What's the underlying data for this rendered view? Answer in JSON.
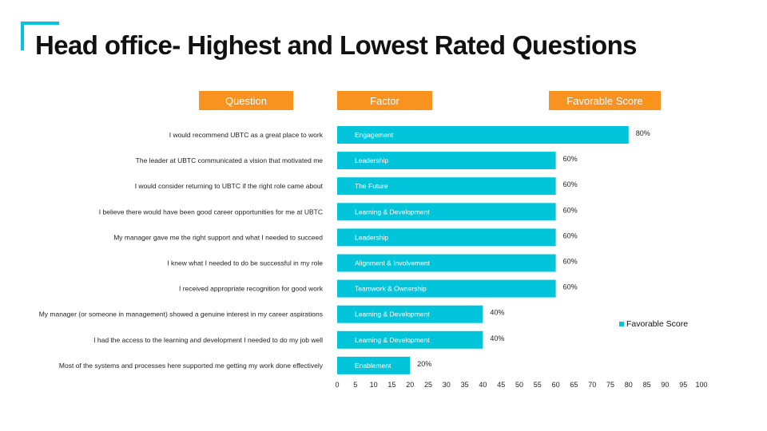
{
  "slide": {
    "title": "Head office- Highest and Lowest Rated Questions",
    "headers": {
      "question": "Question",
      "factor": "Factor",
      "score": "Favorable Score"
    },
    "accent_color": "#00c4d9",
    "header_color": "#f7931e"
  },
  "chart_data": {
    "type": "bar",
    "orientation": "horizontal",
    "categories": [
      "I would recommend UBTC as a great place to work",
      "The leader at UBTC communicated a vision that motivated me",
      "I would consider returning to UBTC if the right role came about",
      "I believe there would have been good career opportunities for me at UBTC",
      "My manager gave me the right support and  what I needed to succeed",
      "I knew what I needed to do be successful in my role",
      "I received appropriate recognition for good work",
      "My manager (or someone in management) showed a genuine interest in my career aspirations",
      "I had the access to the learning and development I needed to do my job  well",
      "Most of the systems and processes here supported me getting my work done effectively"
    ],
    "factors": [
      "Engagement",
      "Leadership",
      "The Future",
      "Learning & Development",
      "Leadership",
      "Alignment & Involvement",
      "Teamwork & Ownership",
      "Learning & Development",
      "Learning & Development",
      "Enablement"
    ],
    "series": [
      {
        "name": "Favorable Score",
        "values": [
          80,
          60,
          60,
          60,
          60,
          60,
          60,
          40,
          40,
          20
        ],
        "color": "#00c4d9"
      }
    ],
    "data_labels": [
      "80%",
      "60%",
      "60%",
      "60%",
      "60%",
      "60%",
      "60%",
      "40%",
      "40%",
      "20%"
    ],
    "xlim": [
      0,
      100
    ],
    "xticks": [
      0,
      5,
      10,
      15,
      20,
      25,
      30,
      35,
      40,
      45,
      50,
      55,
      60,
      65,
      70,
      75,
      80,
      85,
      90,
      95,
      100
    ],
    "legend": {
      "label": "Favorable Score",
      "position": "right"
    },
    "grid": false
  }
}
